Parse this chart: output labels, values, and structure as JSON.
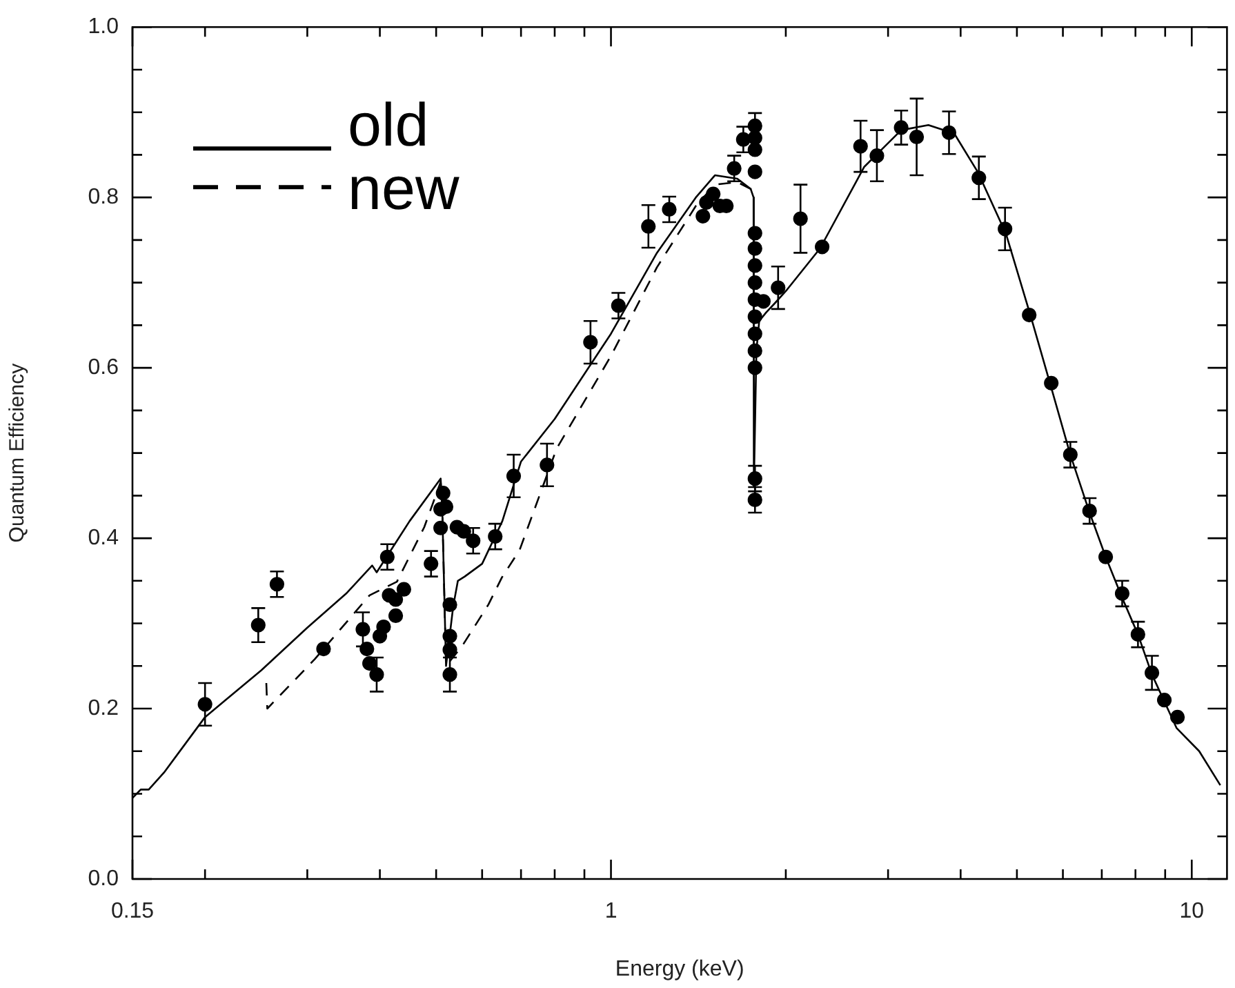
{
  "chart_data": {
    "type": "line",
    "xlabel": "Energy (keV)",
    "ylabel": "Quantum Efficiency",
    "log": "x",
    "grid": false,
    "legend": "top left",
    "xlim": [
      0.15,
      11.5
    ],
    "ylim": [
      0,
      1
    ],
    "xticks": [
      {
        "value": 0.15,
        "label": "0.15"
      },
      {
        "value": 0.2,
        "label": null
      },
      {
        "value": 0.3,
        "label": null
      },
      {
        "value": 0.4,
        "label": null
      },
      {
        "value": 0.5,
        "label": null
      },
      {
        "value": 0.6,
        "label": null
      },
      {
        "value": 0.7,
        "label": null
      },
      {
        "value": 0.8,
        "label": null
      },
      {
        "value": 0.9,
        "label": null
      },
      1,
      {
        "value": 2,
        "label": null
      },
      {
        "value": 3,
        "label": null
      },
      {
        "value": 4,
        "label": null
      },
      {
        "value": 5,
        "label": null
      },
      {
        "value": 6,
        "label": null
      },
      {
        "value": 7,
        "label": null
      },
      {
        "value": 8,
        "label": null
      },
      {
        "value": 9,
        "label": null
      },
      10
    ],
    "yticks": [
      {
        "value": 0,
        "label": "0.0"
      },
      {
        "value": 0.05,
        "label": null
      },
      {
        "value": 0.1,
        "label": null
      },
      {
        "value": 0.15,
        "label": null
      },
      0.2,
      {
        "value": 0.25,
        "label": null
      },
      {
        "value": 0.3,
        "label": null
      },
      {
        "value": 0.35,
        "label": null
      },
      0.4,
      {
        "value": 0.45,
        "label": null
      },
      {
        "value": 0.5,
        "label": null
      },
      {
        "value": 0.55,
        "label": null
      },
      0.6,
      {
        "value": 0.65,
        "label": null
      },
      {
        "value": 0.7,
        "label": null
      },
      {
        "value": 0.75,
        "label": null
      },
      0.8,
      {
        "value": 0.85,
        "label": null
      },
      {
        "value": 0.9,
        "label": null
      },
      {
        "value": 0.95,
        "label": null
      },
      {
        "value": 1,
        "label": "1.0"
      }
    ],
    "series": [
      {
        "name": "old",
        "color": "#000000",
        "line_style": "solid",
        "marker": "none",
        "x": [
          0.15,
          0.155,
          0.16,
          0.17,
          0.2,
          0.25,
          0.3,
          0.35,
          0.388,
          0.395,
          0.45,
          0.509,
          0.512,
          0.52,
          0.535,
          0.545,
          0.56,
          0.6,
          0.65,
          0.7,
          0.8,
          1,
          1.2,
          1.4,
          1.51,
          1.65,
          1.74,
          1.76,
          1.762,
          1.78,
          1.8,
          1.85,
          1.91,
          2.0,
          2.29,
          2.73,
          3.16,
          3.52,
          3.9,
          4.28,
          4.79,
          5.29,
          5.7,
          6.18,
          6.67,
          7.11,
          7.59,
          8.08,
          8.54,
          9.42,
          10.3,
          11.2
        ],
        "values": [
          0.095,
          0.105,
          0.105,
          0.125,
          0.19,
          0.245,
          0.295,
          0.335,
          0.368,
          0.36,
          0.42,
          0.47,
          0.44,
          0.25,
          0.32,
          0.35,
          0.355,
          0.37,
          0.42,
          0.49,
          0.54,
          0.64,
          0.735,
          0.8,
          0.826,
          0.822,
          0.81,
          0.8,
          0.46,
          0.62,
          0.655,
          0.665,
          0.675,
          0.69,
          0.74,
          0.836,
          0.879,
          0.885,
          0.875,
          0.83,
          0.757,
          0.659,
          0.582,
          0.498,
          0.43,
          0.378,
          0.33,
          0.287,
          0.24,
          0.177,
          0.15,
          0.11
        ]
      },
      {
        "name": "new",
        "color": "#000000",
        "line_style": "dashed",
        "marker": "none",
        "x": [
          0.255,
          0.256,
          0.309,
          0.384,
          0.428,
          0.477,
          0.509,
          0.512,
          0.52,
          0.555,
          0.615,
          0.649,
          0.696,
          0.806,
          1,
          1.2,
          1.4,
          1.51,
          1.65,
          1.74,
          1.76
        ],
        "values": [
          0.23,
          0.2,
          0.258,
          0.333,
          0.349,
          0.413,
          0.466,
          0.44,
          0.25,
          0.274,
          0.322,
          0.354,
          0.386,
          0.505,
          0.614,
          0.718,
          0.79,
          0.815,
          0.818,
          0.81,
          0.8
        ]
      },
      {
        "type": "scatter",
        "color": "#000000",
        "marker": "circle",
        "x": [
          0.2,
          0.247,
          0.266,
          0.32,
          0.374,
          0.38,
          0.384,
          0.395,
          0.4,
          0.406,
          0.412,
          0.415,
          0.426,
          0.426,
          0.44,
          0.49,
          0.509,
          0.514,
          0.52,
          0.509,
          0.528,
          0.528,
          0.528,
          0.528,
          0.543,
          0.558,
          0.579,
          0.632,
          0.68,
          0.776,
          0.922,
          1.03,
          1.16,
          1.26,
          1.44,
          1.46,
          1.5,
          1.54,
          1.58,
          1.63,
          1.69,
          1.77,
          1.77,
          1.77,
          1.77,
          1.77,
          1.77,
          1.77,
          1.77,
          1.77,
          1.77,
          1.77,
          1.77,
          1.77,
          1.77,
          1.77,
          1.83,
          1.94,
          2.12,
          2.31,
          2.69,
          2.87,
          3.16,
          3.36,
          3.82,
          4.3,
          4.77,
          5.25,
          5.73,
          6.18,
          6.67,
          7.11,
          7.59,
          8.08,
          8.54,
          8.97,
          9.45
        ],
        "values": [
          0.205,
          0.298,
          0.346,
          0.27,
          0.293,
          0.27,
          0.253,
          0.24,
          0.285,
          0.296,
          0.378,
          0.333,
          0.328,
          0.309,
          0.34,
          0.37,
          0.434,
          0.453,
          0.437,
          0.412,
          0.322,
          0.285,
          0.269,
          0.24,
          0.413,
          0.408,
          0.397,
          0.402,
          0.473,
          0.486,
          0.63,
          0.673,
          0.766,
          0.786,
          0.778,
          0.794,
          0.804,
          0.79,
          0.79,
          0.834,
          0.868,
          0.884,
          0.87,
          0.856,
          0.83,
          0.758,
          0.74,
          0.72,
          0.7,
          0.68,
          0.66,
          0.64,
          0.62,
          0.6,
          0.47,
          0.445,
          0.678,
          0.694,
          0.775,
          0.742,
          0.86,
          0.849,
          0.882,
          0.871,
          0.876,
          0.823,
          0.763,
          0.662,
          0.582,
          0.498,
          0.432,
          0.378,
          0.335,
          0.287,
          0.242,
          0.21,
          0.19
        ],
        "errors": [
          0.025,
          0.02,
          0.015,
          null,
          0.02,
          null,
          null,
          0.02,
          null,
          null,
          0.015,
          null,
          null,
          null,
          null,
          0.015,
          null,
          null,
          null,
          null,
          null,
          null,
          null,
          0.02,
          null,
          null,
          0.015,
          0.015,
          0.025,
          0.025,
          0.025,
          0.015,
          0.025,
          0.015,
          null,
          null,
          null,
          null,
          null,
          0.015,
          0.015,
          0.015,
          null,
          null,
          null,
          null,
          null,
          null,
          null,
          null,
          null,
          null,
          null,
          null,
          0.015,
          0.015,
          null,
          0.025,
          0.04,
          null,
          0.03,
          0.03,
          0.02,
          0.045,
          0.025,
          0.025,
          0.025,
          null,
          null,
          0.015,
          0.015,
          null,
          0.015,
          0.015,
          0.02,
          null,
          null
        ]
      }
    ]
  }
}
